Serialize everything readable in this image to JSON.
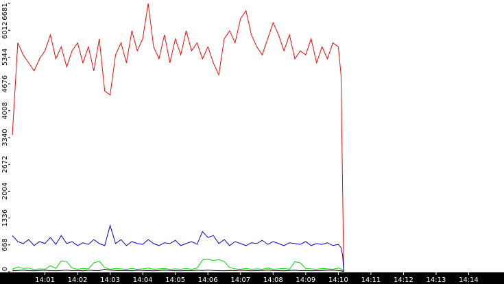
{
  "chart_data": {
    "type": "line",
    "x": [
      "14:00:00",
      "14:00:10",
      "14:00:20",
      "14:00:30",
      "14:00:40",
      "14:00:50",
      "14:01:00",
      "14:01:10",
      "14:01:20",
      "14:01:30",
      "14:01:40",
      "14:01:50",
      "14:02:00",
      "14:02:10",
      "14:02:20",
      "14:02:30",
      "14:02:40",
      "14:02:50",
      "14:03:00",
      "14:03:10",
      "14:03:20",
      "14:03:30",
      "14:03:40",
      "14:03:50",
      "14:04:00",
      "14:04:10",
      "14:04:20",
      "14:04:30",
      "14:04:40",
      "14:04:50",
      "14:05:00",
      "14:05:10",
      "14:05:20",
      "14:05:30",
      "14:05:40",
      "14:05:50",
      "14:06:00",
      "14:06:10",
      "14:06:20",
      "14:06:30",
      "14:06:40",
      "14:06:50",
      "14:07:00",
      "14:07:10",
      "14:07:20",
      "14:07:30",
      "14:07:40",
      "14:07:50",
      "14:08:00",
      "14:08:10",
      "14:08:20",
      "14:08:30",
      "14:08:40",
      "14:08:50",
      "14:09:00",
      "14:09:10",
      "14:09:20",
      "14:09:30",
      "14:09:40",
      "14:09:50",
      "14:10:00",
      "14:10:05",
      "14:10:08",
      "14:10:10"
    ],
    "series": [
      {
        "color": "#ff0000",
        "values": [
          3400,
          5700,
          5400,
          5200,
          5000,
          5300,
          5500,
          5900,
          5300,
          5600,
          5100,
          5500,
          5700,
          5200,
          5600,
          5000,
          5800,
          4500,
          4400,
          5400,
          5700,
          5200,
          6000,
          5500,
          5800,
          6681,
          5600,
          5300,
          5900,
          5200,
          5800,
          5400,
          6000,
          5500,
          5700,
          5300,
          5600,
          5200,
          4900,
          5800,
          6000,
          5700,
          6300,
          6500,
          5900,
          5600,
          5400,
          5800,
          6200,
          5900,
          5500,
          5900,
          5300,
          5500,
          5400,
          5800,
          5200,
          5600,
          5300,
          5700,
          5600,
          4900,
          2000,
          0
        ]
      },
      {
        "color": "#0000cc",
        "values": [
          900,
          750,
          700,
          800,
          650,
          750,
          700,
          850,
          680,
          900,
          700,
          750,
          650,
          720,
          680,
          800,
          700,
          650,
          1150,
          700,
          800,
          650,
          750,
          700,
          680,
          800,
          700,
          650,
          720,
          700,
          780,
          650,
          700,
          750,
          680,
          1000,
          850,
          900,
          700,
          800,
          650,
          750,
          700,
          650,
          720,
          700,
          780,
          680,
          750,
          700,
          650,
          720,
          700,
          680,
          750,
          650,
          700,
          680,
          720,
          650,
          680,
          600,
          400,
          0
        ]
      },
      {
        "color": "#00dd00",
        "values": [
          60,
          120,
          80,
          90,
          50,
          70,
          60,
          150,
          80,
          270,
          250,
          90,
          60,
          80,
          70,
          220,
          260,
          100,
          60,
          80,
          70,
          60,
          80,
          60,
          70,
          90,
          60,
          70,
          80,
          60,
          70,
          60,
          80,
          60,
          90,
          290,
          310,
          280,
          300,
          250,
          100,
          70,
          60,
          80,
          60,
          70,
          60,
          90,
          60,
          70,
          80,
          60,
          250,
          220,
          80,
          70,
          60,
          80,
          70,
          60,
          90,
          70,
          30,
          0
        ]
      },
      {
        "color": "#000000",
        "values": [
          20,
          30,
          40,
          25,
          20,
          30,
          35,
          25,
          20,
          30,
          40,
          25,
          30,
          20,
          35,
          30,
          25,
          60,
          40,
          30,
          25,
          30,
          20,
          35,
          30,
          25,
          20,
          30,
          40,
          30,
          25,
          20,
          30,
          25,
          35,
          30,
          40,
          30,
          25,
          20,
          30,
          25,
          35,
          30,
          20,
          25,
          30,
          40,
          30,
          25,
          20,
          30,
          35,
          25,
          30,
          20,
          25,
          30,
          35,
          40,
          30,
          20,
          10,
          0
        ]
      }
    ],
    "xlim": [
      "14:00:00",
      "14:15:05"
    ],
    "xticks": [
      "14:01",
      "14:02",
      "14:03",
      "14:04",
      "14:05",
      "14:06",
      "14:07",
      "14:08",
      "14:09",
      "14:10",
      "14:11",
      "14:12",
      "14:13",
      "14:14"
    ],
    "ylim": [
      0,
      6681
    ],
    "yticks": [
      0,
      668,
      1336,
      2004,
      2672,
      3340,
      4008,
      4676,
      5344,
      6012,
      6681
    ]
  }
}
